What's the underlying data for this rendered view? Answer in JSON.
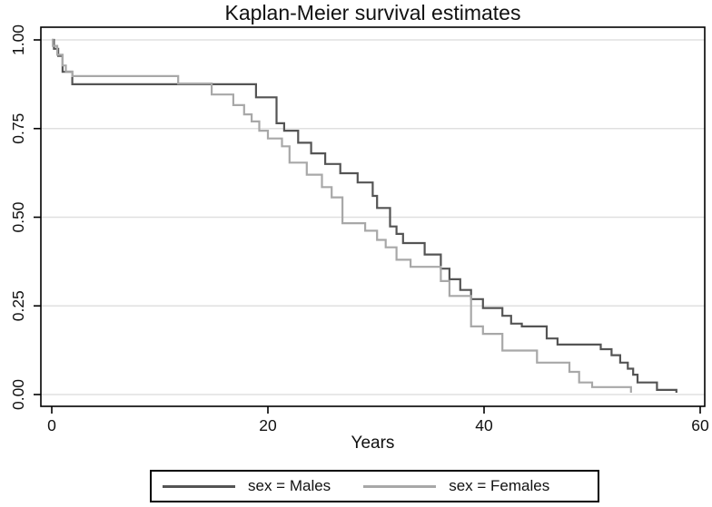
{
  "chart_data": {
    "type": "line",
    "subtype": "kaplan-meier-step",
    "title": "Kaplan-Meier survival estimates",
    "xlabel": "Years",
    "ylabel": "",
    "xlim": [
      0,
      60
    ],
    "ylim": [
      0,
      1
    ],
    "grid": "horizontal",
    "legend_position": "bottom",
    "x_ticks": [
      {
        "value": 0,
        "label": "0"
      },
      {
        "value": 20,
        "label": "20"
      },
      {
        "value": 40,
        "label": "40"
      },
      {
        "value": 60,
        "label": "60"
      }
    ],
    "y_ticks": [
      {
        "value": 0.0,
        "label": "0.00"
      },
      {
        "value": 0.25,
        "label": "0.25"
      },
      {
        "value": 0.5,
        "label": "0.50"
      },
      {
        "value": 0.75,
        "label": "0.75"
      },
      {
        "value": 1.0,
        "label": "1.00"
      }
    ],
    "colors": {
      "grid": "#e0e0e0",
      "frame": "#000000",
      "text": "#111111"
    },
    "series": [
      {
        "name": "sex = Males",
        "color": "#545454",
        "points": [
          [
            0,
            1.0
          ],
          [
            0.2,
            0.975
          ],
          [
            0.6,
            0.955
          ],
          [
            1.0,
            0.91
          ],
          [
            1.9,
            0.875
          ],
          [
            18.9,
            0.838
          ],
          [
            20.8,
            0.765
          ],
          [
            21.5,
            0.744
          ],
          [
            22.8,
            0.71
          ],
          [
            24.0,
            0.68
          ],
          [
            25.3,
            0.65
          ],
          [
            26.7,
            0.624
          ],
          [
            28.3,
            0.598
          ],
          [
            29.7,
            0.56
          ],
          [
            30.1,
            0.526
          ],
          [
            31.3,
            0.474
          ],
          [
            31.9,
            0.453
          ],
          [
            32.5,
            0.427
          ],
          [
            34.5,
            0.395
          ],
          [
            36.0,
            0.355
          ],
          [
            36.8,
            0.325
          ],
          [
            37.8,
            0.295
          ],
          [
            38.8,
            0.269
          ],
          [
            39.9,
            0.244
          ],
          [
            41.7,
            0.222
          ],
          [
            42.5,
            0.2
          ],
          [
            43.5,
            0.192
          ],
          [
            45.8,
            0.158
          ],
          [
            46.8,
            0.141
          ],
          [
            50.8,
            0.128
          ],
          [
            51.8,
            0.111
          ],
          [
            52.6,
            0.09
          ],
          [
            53.3,
            0.073
          ],
          [
            53.8,
            0.056
          ],
          [
            54.2,
            0.034
          ],
          [
            56.0,
            0.013
          ],
          [
            57.8,
            0.005
          ]
        ]
      },
      {
        "name": "sex = Females",
        "color": "#a8a8a8",
        "points": [
          [
            0,
            1.0
          ],
          [
            0.1,
            0.983
          ],
          [
            0.5,
            0.958
          ],
          [
            1.0,
            0.928
          ],
          [
            1.3,
            0.911
          ],
          [
            1.9,
            0.898
          ],
          [
            11.7,
            0.877
          ],
          [
            14.8,
            0.846
          ],
          [
            16.8,
            0.816
          ],
          [
            17.8,
            0.79
          ],
          [
            18.5,
            0.77
          ],
          [
            19.2,
            0.744
          ],
          [
            20.0,
            0.722
          ],
          [
            21.3,
            0.7
          ],
          [
            22.0,
            0.654
          ],
          [
            23.6,
            0.62
          ],
          [
            25.0,
            0.585
          ],
          [
            25.9,
            0.556
          ],
          [
            26.9,
            0.483
          ],
          [
            29.0,
            0.462
          ],
          [
            30.1,
            0.436
          ],
          [
            30.9,
            0.415
          ],
          [
            31.9,
            0.38
          ],
          [
            33.2,
            0.36
          ],
          [
            36.0,
            0.32
          ],
          [
            36.8,
            0.278
          ],
          [
            38.8,
            0.192
          ],
          [
            39.9,
            0.171
          ],
          [
            41.7,
            0.124
          ],
          [
            44.9,
            0.09
          ],
          [
            47.9,
            0.064
          ],
          [
            48.8,
            0.034
          ],
          [
            50.0,
            0.021
          ],
          [
            53.6,
            0.005
          ]
        ]
      }
    ]
  }
}
